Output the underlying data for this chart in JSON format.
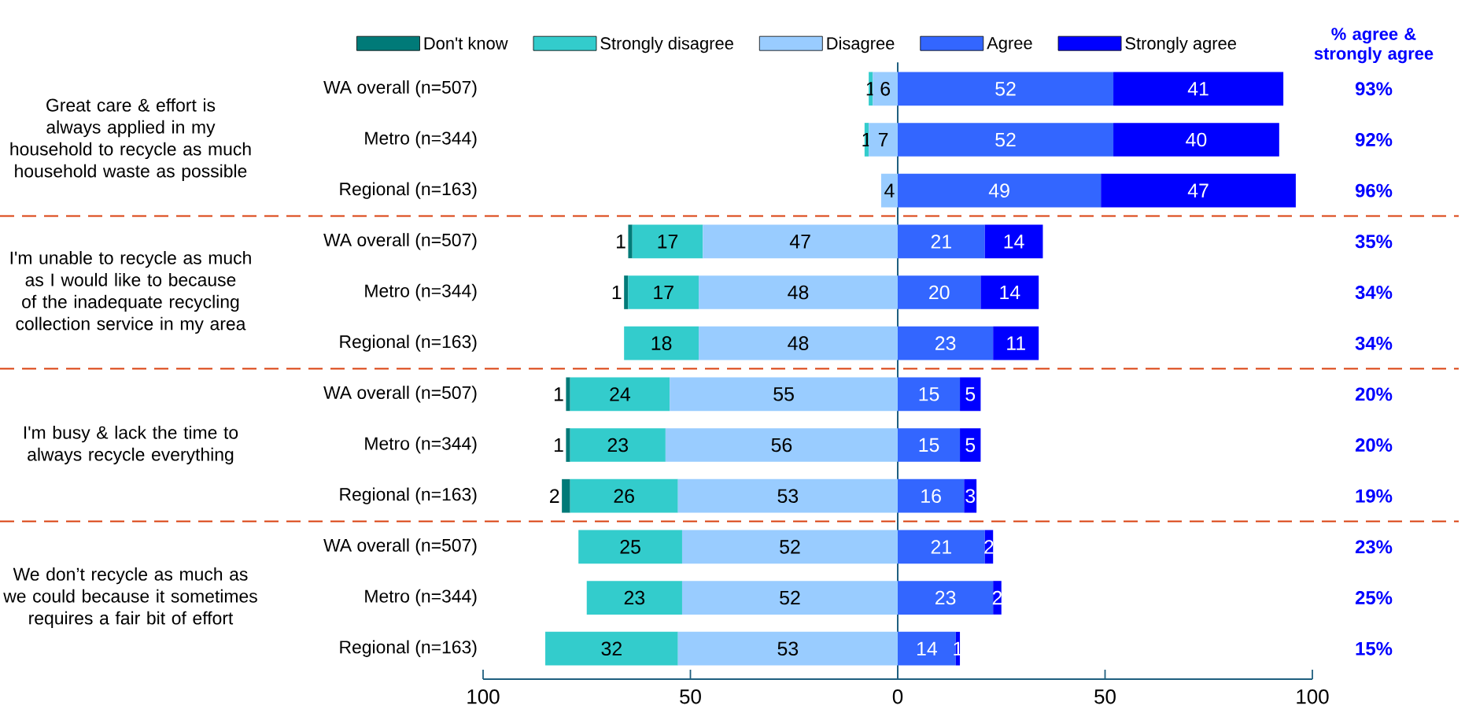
{
  "chart_data": {
    "type": "bar",
    "orientation": "horizontal",
    "legend": "top",
    "data_labels": true,
    "categories": [
      "WA overall (n=507)",
      "Metro (n=344)",
      "Regional (n=163)",
      "WA overall (n=507)",
      "Metro (n=344)",
      "Regional (n=163)",
      "WA overall (n=507)",
      "Metro (n=344)",
      "Regional (n=163)",
      "WA overall (n=507)",
      "Metro (n=344)",
      "Regional (n=163)"
    ],
    "series": [
      {
        "name": "Don't know",
        "color": "#007a78",
        "values": [
          null,
          null,
          null,
          1,
          1,
          null,
          1,
          1,
          2,
          null,
          null,
          null
        ],
        "base": [
          null,
          null,
          null,
          -65,
          -66,
          null,
          -80,
          -80,
          -81,
          null,
          null,
          null
        ]
      },
      {
        "name": "Strongly disagree",
        "color": "#33cccc",
        "values": [
          1,
          1,
          null,
          17,
          17,
          18,
          24,
          23,
          26,
          25,
          23,
          32
        ],
        "base": [
          -7,
          -8,
          null,
          -64,
          -65,
          -66,
          -79,
          -79,
          -79,
          -77,
          -75,
          -85
        ]
      },
      {
        "name": "Disagree",
        "color": "#99ccff",
        "values": [
          6,
          7,
          4,
          47,
          48,
          48,
          55,
          56,
          53,
          52,
          52,
          53
        ],
        "base": [
          -6,
          -7,
          -4,
          -47,
          -48,
          -48,
          -55,
          -56,
          -53,
          -52,
          -52,
          -53
        ]
      },
      {
        "name": "Agree",
        "color": "#3366ff",
        "values": [
          52,
          52,
          49,
          21,
          20,
          23,
          15,
          15,
          16,
          21,
          23,
          14
        ],
        "base": [
          0,
          0,
          0,
          0,
          0,
          0,
          0,
          0,
          0,
          0,
          0,
          0
        ]
      },
      {
        "name": "Strongly agree",
        "color": "#0000ff",
        "values": [
          41,
          40,
          47,
          14,
          14,
          11,
          5,
          5,
          3,
          2,
          2,
          1
        ],
        "base": [
          52,
          52,
          49,
          21,
          20,
          23,
          15,
          15,
          16,
          21,
          23,
          14
        ]
      }
    ],
    "xlim": [
      -100,
      100
    ],
    "xticks": [
      {
        "value": -100,
        "label": "100"
      },
      {
        "value": -50,
        "label": "50"
      },
      0,
      50,
      100
    ],
    "ref_lines": [
      {
        "axis": "x",
        "value": 0,
        "color": "#1f5f7f",
        "line_style": "solid"
      }
    ],
    "annotations": [
      "Great care & effort is always applied in my household to recycle as much household waste as possible",
      "I'm unable to recycle as much as I would like to because of the inadequate recycling collection service in my area",
      "I'm busy & lack the time to always recycle everything",
      "We don’t recycle as much as we could because it sometimes requires a fair bit of effort",
      "% agree & strongly agree",
      "93%",
      "92%",
      "96%",
      "35%",
      "34%",
      "34%",
      "20%",
      "20%",
      "19%",
      "23%",
      "25%",
      "15%"
    ]
  }
}
